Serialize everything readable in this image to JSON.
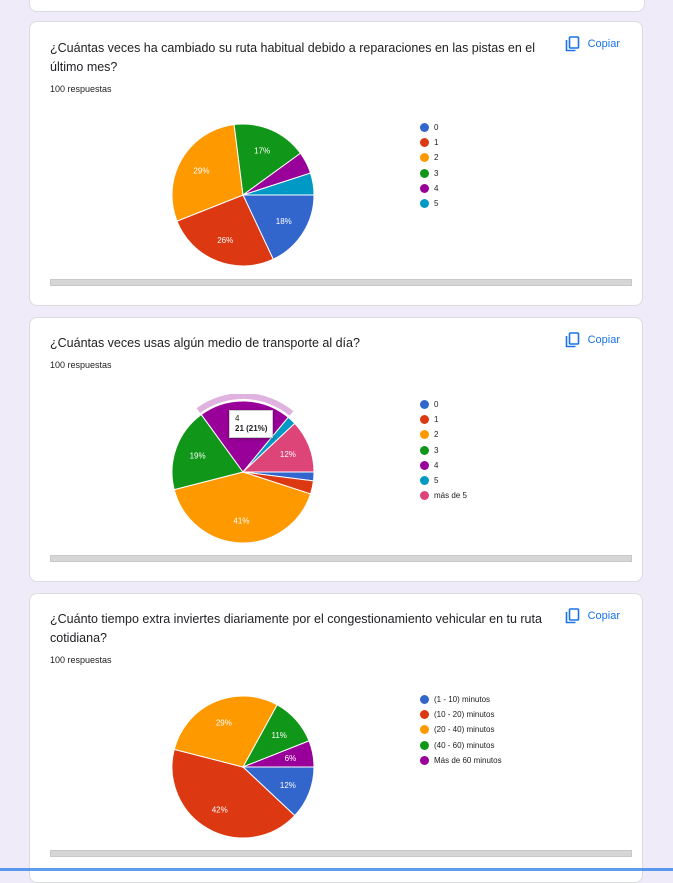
{
  "copy_label": "Copiar",
  "questions": [
    {
      "title": "¿Cuántas veces ha cambiado su ruta habitual debido a reparaciones en las pistas en el último mes?",
      "responses": "100 respuestas"
    },
    {
      "title": "¿Cuántas veces usas algún medio de transporte al día?",
      "responses": "100 respuestas",
      "tooltip": {
        "category": "4",
        "value": "21 (21%)"
      }
    },
    {
      "title": "¿Cuánto tiempo extra inviertes diariamente por el congestionamiento vehicular en tu ruta cotidiana?",
      "responses": "100 respuestas"
    }
  ],
  "chart_data": [
    {
      "type": "pie",
      "categories": [
        "0",
        "1",
        "2",
        "3",
        "4",
        "5"
      ],
      "values": [
        18,
        26,
        29,
        17,
        5,
        5
      ],
      "slice_labels": [
        "18%",
        "26%",
        "29%",
        "17%",
        "",
        ""
      ],
      "colors": [
        "#3366cc",
        "#dc3912",
        "#ff9900",
        "#109618",
        "#990099",
        "#0099c6"
      ],
      "legend": "right"
    },
    {
      "type": "pie",
      "categories": [
        "0",
        "1",
        "2",
        "3",
        "4",
        "5",
        "más de 5"
      ],
      "values": [
        2,
        3,
        41,
        19,
        21,
        2,
        12
      ],
      "slice_labels": [
        "",
        "",
        "41%",
        "19%",
        "",
        "",
        "12%"
      ],
      "colors": [
        "#3366cc",
        "#dc3912",
        "#ff9900",
        "#109618",
        "#990099",
        "#0099c6",
        "#dd4477"
      ],
      "highlighted": "4",
      "legend": "right"
    },
    {
      "type": "pie",
      "categories": [
        "(1 - 10) minutos",
        "(10 - 20) minutos",
        "(20 - 40) minutos",
        "(40 - 60) minutos",
        "Más de 60 minutos"
      ],
      "values": [
        12,
        42,
        29,
        11,
        6
      ],
      "slice_labels": [
        "12%",
        "42%",
        "29%",
        "11%",
        "6%"
      ],
      "colors": [
        "#3366cc",
        "#dc3912",
        "#ff9900",
        "#109618",
        "#990099"
      ],
      "legend": "right"
    }
  ]
}
